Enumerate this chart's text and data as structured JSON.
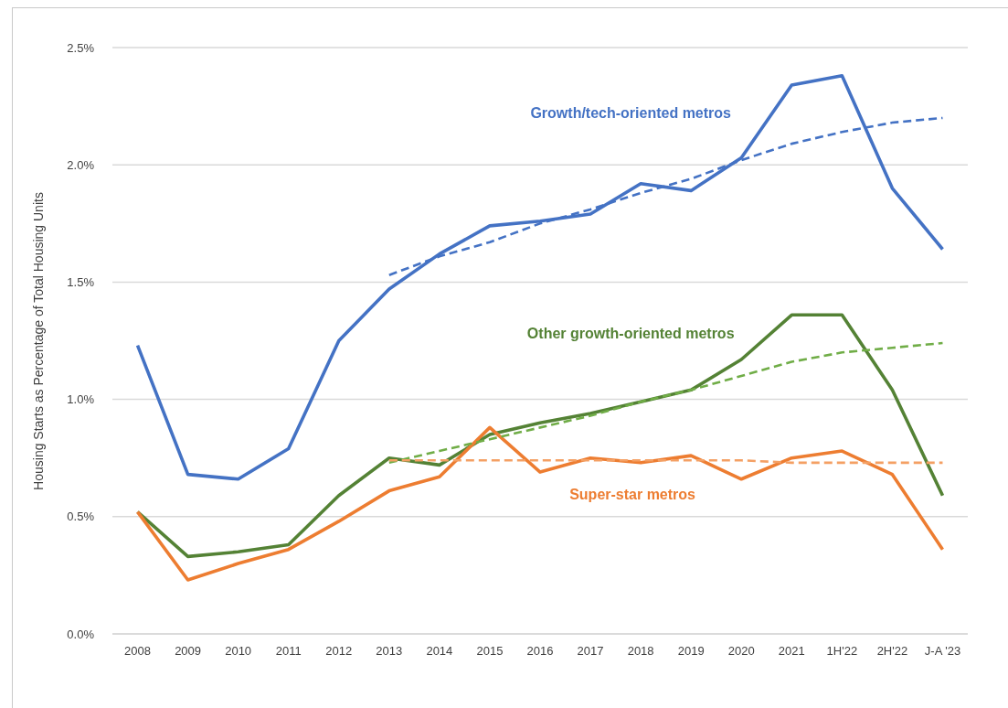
{
  "chart_data": {
    "type": "line",
    "ylabel": "Housing Starts as Percentage of Total Housing Units",
    "categories": [
      "2008",
      "2009",
      "2010",
      "2011",
      "2012",
      "2013",
      "2014",
      "2015",
      "2016",
      "2017",
      "2018",
      "2019",
      "2020",
      "2021",
      "1H'22",
      "2H'22",
      "J-A '23"
    ],
    "series": [
      {
        "name": "Growth/tech-oriented metros",
        "color": "#4472c4",
        "values": [
          1.23,
          0.68,
          0.66,
          0.79,
          1.25,
          1.47,
          1.62,
          1.74,
          1.76,
          1.79,
          1.92,
          1.89,
          2.03,
          2.34,
          2.38,
          1.9,
          1.64
        ]
      },
      {
        "name": "Other growth-oriented metros",
        "color": "#548235",
        "values": [
          0.52,
          0.33,
          0.35,
          0.38,
          0.59,
          0.75,
          0.72,
          0.85,
          0.9,
          0.94,
          0.99,
          1.04,
          1.17,
          1.36,
          1.36,
          1.04,
          0.59
        ]
      },
      {
        "name": "Super-star metros",
        "color": "#ed7d31",
        "values": [
          0.52,
          0.23,
          0.3,
          0.36,
          0.48,
          0.61,
          0.67,
          0.88,
          0.69,
          0.75,
          0.73,
          0.76,
          0.66,
          0.75,
          0.78,
          0.68,
          0.36
        ]
      },
      {
        "type": "line",
        "line_style": "dashed",
        "color": "#4472c4",
        "values": [
          null,
          null,
          null,
          null,
          null,
          1.53,
          1.61,
          1.67,
          1.75,
          1.81,
          1.88,
          1.94,
          2.02,
          2.09,
          2.14,
          2.18,
          2.2
        ]
      },
      {
        "type": "line",
        "line_style": "dashed",
        "color": "#70ad47",
        "values": [
          null,
          null,
          null,
          null,
          null,
          0.73,
          0.78,
          0.83,
          0.88,
          0.93,
          0.99,
          1.04,
          1.1,
          1.16,
          1.2,
          1.22,
          1.24
        ]
      },
      {
        "type": "line",
        "line_style": "dashed",
        "color": "#f4a064",
        "values": [
          null,
          null,
          null,
          null,
          null,
          0.74,
          0.74,
          0.74,
          0.74,
          0.74,
          0.74,
          0.74,
          0.74,
          0.73,
          0.73,
          0.73,
          0.73
        ]
      }
    ],
    "ylim": [
      0,
      2.5
    ],
    "yticks": [
      {
        "value": 0,
        "label": "0.0%"
      },
      {
        "value": 0.5,
        "label": "0.5%"
      },
      {
        "value": 1,
        "label": "1.0%"
      },
      {
        "value": 1.5,
        "label": "1.5%"
      },
      {
        "value": 2,
        "label": "2.0%"
      },
      {
        "value": 2.5,
        "label": "2.5%"
      }
    ],
    "grid": "y",
    "legend": false,
    "marker": "none",
    "line_style": "solid"
  }
}
